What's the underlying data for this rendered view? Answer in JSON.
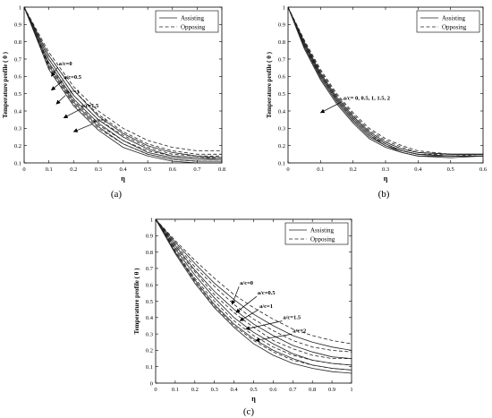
{
  "figure": {
    "panels": [
      {
        "caption": "(a)",
        "xlabel": "η",
        "ylabel": "Temperature profile ( θ )"
      },
      {
        "caption": "(b)",
        "xlabel": "η",
        "ylabel": "Temperature profile ( θ )"
      },
      {
        "caption": "(c)",
        "xlabel": "η",
        "ylabel": "Temperature profile ( θ )"
      }
    ]
  },
  "chart_data": [
    {
      "type": "line",
      "caption": "(a)",
      "xlabel": "η",
      "ylabel": "Temperature profile ( θ )",
      "xlim": [
        0,
        0.8
      ],
      "ylim": [
        0.1,
        1
      ],
      "xticks": [
        "0",
        "0.1",
        "0.2",
        "0.3",
        "0.4",
        "0.5",
        "0.6",
        "0.7",
        "0.8"
      ],
      "yticks": [
        "0.1",
        "0.2",
        "0.3",
        "0.4",
        "0.5",
        "0.6",
        "0.7",
        "0.8",
        "0.9",
        "1"
      ],
      "legend": {
        "position": "top-right",
        "entries": [
          {
            "label": "Assisting",
            "style": "solid"
          },
          {
            "label": "Opposing",
            "style": "dashed"
          }
        ]
      },
      "grid": false,
      "series": [
        {
          "name": "a/c=0",
          "style": "solid",
          "x": [
            0,
            0.1,
            0.2,
            0.3,
            0.4,
            0.5,
            0.6,
            0.7,
            0.8
          ],
          "y": [
            1,
            0.72,
            0.52,
            0.37,
            0.27,
            0.2,
            0.16,
            0.14,
            0.13
          ]
        },
        {
          "name": "a/c=0",
          "style": "dashed",
          "x": [
            0,
            0.1,
            0.2,
            0.3,
            0.4,
            0.5,
            0.6,
            0.7,
            0.8
          ],
          "y": [
            1,
            0.74,
            0.54,
            0.4,
            0.3,
            0.23,
            0.19,
            0.17,
            0.17
          ]
        },
        {
          "name": "a/c=0.5",
          "style": "solid",
          "x": [
            0,
            0.1,
            0.2,
            0.3,
            0.4,
            0.5,
            0.6,
            0.7,
            0.8
          ],
          "y": [
            1,
            0.7,
            0.49,
            0.35,
            0.25,
            0.18,
            0.14,
            0.13,
            0.12
          ]
        },
        {
          "name": "a/c=0.5",
          "style": "dashed",
          "x": [
            0,
            0.1,
            0.2,
            0.3,
            0.4,
            0.5,
            0.6,
            0.7,
            0.8
          ],
          "y": [
            1,
            0.72,
            0.52,
            0.38,
            0.28,
            0.21,
            0.17,
            0.15,
            0.15
          ]
        },
        {
          "name": "a/c=1",
          "style": "solid",
          "x": [
            0,
            0.1,
            0.2,
            0.3,
            0.4,
            0.5,
            0.6,
            0.7,
            0.8
          ],
          "y": [
            1,
            0.68,
            0.47,
            0.33,
            0.23,
            0.16,
            0.13,
            0.12,
            0.12
          ]
        },
        {
          "name": "a/c=1",
          "style": "dashed",
          "x": [
            0,
            0.1,
            0.2,
            0.3,
            0.4,
            0.5,
            0.6,
            0.7,
            0.8
          ],
          "y": [
            1,
            0.7,
            0.49,
            0.35,
            0.26,
            0.19,
            0.15,
            0.14,
            0.14
          ]
        },
        {
          "name": "a/c=1.5",
          "style": "solid",
          "x": [
            0,
            0.1,
            0.2,
            0.3,
            0.4,
            0.5,
            0.6,
            0.7,
            0.8
          ],
          "y": [
            1,
            0.66,
            0.45,
            0.31,
            0.21,
            0.15,
            0.12,
            0.11,
            0.11
          ]
        },
        {
          "name": "a/c=1.5",
          "style": "dashed",
          "x": [
            0,
            0.1,
            0.2,
            0.3,
            0.4,
            0.5,
            0.6,
            0.7,
            0.8
          ],
          "y": [
            1,
            0.67,
            0.46,
            0.32,
            0.23,
            0.17,
            0.14,
            0.13,
            0.13
          ]
        },
        {
          "name": "a/c=2",
          "style": "solid",
          "x": [
            0,
            0.1,
            0.2,
            0.3,
            0.4,
            0.5,
            0.6,
            0.7,
            0.8
          ],
          "y": [
            1,
            0.64,
            0.43,
            0.29,
            0.19,
            0.14,
            0.11,
            0.1,
            0.1
          ]
        },
        {
          "name": "a/c=2",
          "style": "dashed",
          "x": [
            0,
            0.1,
            0.2,
            0.3,
            0.4,
            0.5,
            0.6,
            0.7,
            0.8
          ],
          "y": [
            1,
            0.65,
            0.44,
            0.3,
            0.21,
            0.15,
            0.12,
            0.11,
            0.11
          ]
        }
      ],
      "annotations": [
        {
          "text": "a/c=0",
          "x": 0.14,
          "y": 0.665
        },
        {
          "text": "a/c=0.5",
          "x": 0.16,
          "y": 0.585
        },
        {
          "text": "a/c=1",
          "x": 0.17,
          "y": 0.5
        },
        {
          "text": "a/c=1.5",
          "x": 0.23,
          "y": 0.42
        },
        {
          "text": "a/c=2",
          "x": 0.28,
          "y": 0.335
        }
      ]
    },
    {
      "type": "line",
      "caption": "(b)",
      "xlabel": "η",
      "ylabel": "Temperature profile ( θ )",
      "xlim": [
        0,
        0.6
      ],
      "ylim": [
        0.1,
        1
      ],
      "xticks": [
        "0",
        "0.1",
        "0.2",
        "0.3",
        "0.4",
        "0.5",
        "0.6"
      ],
      "yticks": [
        "0.1",
        "0.2",
        "0.3",
        "0.4",
        "0.5",
        "0.6",
        "0.7",
        "0.8",
        "0.9",
        "1"
      ],
      "legend": {
        "position": "top-right",
        "entries": [
          {
            "label": "Assisting",
            "style": "solid"
          },
          {
            "label": "Opposing",
            "style": "dashed"
          }
        ]
      },
      "grid": false,
      "series": [
        {
          "name": "a/c=0",
          "style": "solid",
          "x": [
            0,
            0.05,
            0.1,
            0.15,
            0.2,
            0.25,
            0.3,
            0.35,
            0.4,
            0.5,
            0.6
          ],
          "y": [
            1,
            0.8,
            0.62,
            0.48,
            0.37,
            0.28,
            0.22,
            0.18,
            0.16,
            0.15,
            0.15
          ]
        },
        {
          "name": "a/c=0",
          "style": "dashed",
          "x": [
            0,
            0.05,
            0.1,
            0.15,
            0.2,
            0.25,
            0.3,
            0.35,
            0.4,
            0.5,
            0.6
          ],
          "y": [
            1,
            0.81,
            0.64,
            0.5,
            0.39,
            0.3,
            0.24,
            0.2,
            0.17,
            0.15,
            0.15
          ]
        },
        {
          "name": "a/c=0.5",
          "style": "solid",
          "x": [
            0,
            0.05,
            0.1,
            0.15,
            0.2,
            0.25,
            0.3,
            0.35,
            0.4,
            0.5,
            0.6
          ],
          "y": [
            1,
            0.79,
            0.61,
            0.47,
            0.36,
            0.27,
            0.21,
            0.17,
            0.15,
            0.14,
            0.14
          ]
        },
        {
          "name": "a/c=0.5",
          "style": "dashed",
          "x": [
            0,
            0.05,
            0.1,
            0.15,
            0.2,
            0.25,
            0.3,
            0.35,
            0.4,
            0.5,
            0.6
          ],
          "y": [
            1,
            0.8,
            0.63,
            0.49,
            0.38,
            0.29,
            0.23,
            0.19,
            0.16,
            0.15,
            0.15
          ]
        },
        {
          "name": "a/c=1",
          "style": "solid",
          "x": [
            0,
            0.05,
            0.1,
            0.15,
            0.2,
            0.25,
            0.3,
            0.35,
            0.4,
            0.5,
            0.6
          ],
          "y": [
            1,
            0.78,
            0.6,
            0.46,
            0.35,
            0.26,
            0.2,
            0.17,
            0.15,
            0.14,
            0.14
          ]
        },
        {
          "name": "a/c=1",
          "style": "dashed",
          "x": [
            0,
            0.05,
            0.1,
            0.15,
            0.2,
            0.25,
            0.3,
            0.35,
            0.4,
            0.5,
            0.6
          ],
          "y": [
            1,
            0.79,
            0.62,
            0.48,
            0.37,
            0.28,
            0.22,
            0.18,
            0.16,
            0.15,
            0.15
          ]
        },
        {
          "name": "a/c=1.5",
          "style": "solid",
          "x": [
            0,
            0.05,
            0.1,
            0.15,
            0.2,
            0.25,
            0.3,
            0.35,
            0.4,
            0.5,
            0.6
          ],
          "y": [
            1,
            0.77,
            0.59,
            0.45,
            0.34,
            0.25,
            0.2,
            0.16,
            0.14,
            0.14,
            0.14
          ]
        },
        {
          "name": "a/c=1.5",
          "style": "dashed",
          "x": [
            0,
            0.05,
            0.1,
            0.15,
            0.2,
            0.25,
            0.3,
            0.35,
            0.4,
            0.5,
            0.6
          ],
          "y": [
            1,
            0.78,
            0.61,
            0.47,
            0.36,
            0.27,
            0.21,
            0.17,
            0.15,
            0.15,
            0.15
          ]
        },
        {
          "name": "a/c=2",
          "style": "solid",
          "x": [
            0,
            0.05,
            0.1,
            0.15,
            0.2,
            0.25,
            0.3,
            0.35,
            0.4,
            0.5,
            0.6
          ],
          "y": [
            1,
            0.76,
            0.58,
            0.44,
            0.33,
            0.24,
            0.19,
            0.16,
            0.14,
            0.13,
            0.14
          ]
        },
        {
          "name": "a/c=2",
          "style": "dashed",
          "x": [
            0,
            0.05,
            0.1,
            0.15,
            0.2,
            0.25,
            0.3,
            0.35,
            0.4,
            0.5,
            0.6
          ],
          "y": [
            1,
            0.77,
            0.6,
            0.46,
            0.35,
            0.26,
            0.21,
            0.17,
            0.15,
            0.14,
            0.15
          ]
        }
      ],
      "annotations": [
        {
          "text": "a/c= 0, 0.5, 1, 1.5, 2",
          "x": 0.17,
          "y": 0.465
        }
      ]
    },
    {
      "type": "line",
      "caption": "(c)",
      "xlabel": "η",
      "ylabel": "Temperature profile ( θ )",
      "xlim": [
        0,
        1
      ],
      "ylim": [
        0,
        1
      ],
      "xticks": [
        "0",
        "0.1",
        "0.2",
        "0.3",
        "0.4",
        "0.5",
        "0.6",
        "0.7",
        "0.8",
        "0.9",
        "1"
      ],
      "yticks": [
        "0",
        "0.1",
        "0.2",
        "0.3",
        "0.4",
        "0.5",
        "0.6",
        "0.7",
        "0.8",
        "0.9",
        "1"
      ],
      "legend": {
        "position": "top-right",
        "entries": [
          {
            "label": "Assisting",
            "style": "solid"
          },
          {
            "label": "Opposing",
            "style": "dashed"
          }
        ]
      },
      "grid": false,
      "series": [
        {
          "name": "a/c=0",
          "style": "solid",
          "x": [
            0,
            0.1,
            0.2,
            0.3,
            0.4,
            0.5,
            0.6,
            0.7,
            0.8,
            0.9,
            1
          ],
          "y": [
            1,
            0.86,
            0.73,
            0.61,
            0.51,
            0.42,
            0.35,
            0.29,
            0.25,
            0.22,
            0.2
          ]
        },
        {
          "name": "a/c=0",
          "style": "dashed",
          "x": [
            0,
            0.1,
            0.2,
            0.3,
            0.4,
            0.5,
            0.6,
            0.7,
            0.8,
            0.9,
            1
          ],
          "y": [
            1,
            0.87,
            0.75,
            0.64,
            0.54,
            0.46,
            0.39,
            0.33,
            0.29,
            0.26,
            0.24
          ]
        },
        {
          "name": "a/c=0.5",
          "style": "solid",
          "x": [
            0,
            0.1,
            0.2,
            0.3,
            0.4,
            0.5,
            0.6,
            0.7,
            0.8,
            0.9,
            1
          ],
          "y": [
            1,
            0.84,
            0.69,
            0.56,
            0.45,
            0.36,
            0.29,
            0.23,
            0.19,
            0.16,
            0.15
          ]
        },
        {
          "name": "a/c=0.5",
          "style": "dashed",
          "x": [
            0,
            0.1,
            0.2,
            0.3,
            0.4,
            0.5,
            0.6,
            0.7,
            0.8,
            0.9,
            1
          ],
          "y": [
            1,
            0.85,
            0.71,
            0.59,
            0.48,
            0.39,
            0.32,
            0.26,
            0.22,
            0.2,
            0.19
          ]
        },
        {
          "name": "a/c=1",
          "style": "solid",
          "x": [
            0,
            0.1,
            0.2,
            0.3,
            0.4,
            0.5,
            0.6,
            0.7,
            0.8,
            0.9,
            1
          ],
          "y": [
            1,
            0.82,
            0.66,
            0.52,
            0.4,
            0.31,
            0.24,
            0.18,
            0.14,
            0.12,
            0.11
          ]
        },
        {
          "name": "a/c=1",
          "style": "dashed",
          "x": [
            0,
            0.1,
            0.2,
            0.3,
            0.4,
            0.5,
            0.6,
            0.7,
            0.8,
            0.9,
            1
          ],
          "y": [
            1,
            0.83,
            0.68,
            0.54,
            0.43,
            0.34,
            0.26,
            0.21,
            0.17,
            0.15,
            0.15
          ]
        },
        {
          "name": "a/c=1.5",
          "style": "solid",
          "x": [
            0,
            0.1,
            0.2,
            0.3,
            0.4,
            0.5,
            0.6,
            0.7,
            0.8,
            0.9,
            1
          ],
          "y": [
            1,
            0.8,
            0.63,
            0.48,
            0.36,
            0.27,
            0.2,
            0.15,
            0.11,
            0.09,
            0.08
          ]
        },
        {
          "name": "a/c=1.5",
          "style": "dashed",
          "x": [
            0,
            0.1,
            0.2,
            0.3,
            0.4,
            0.5,
            0.6,
            0.7,
            0.8,
            0.9,
            1
          ],
          "y": [
            1,
            0.81,
            0.64,
            0.5,
            0.38,
            0.29,
            0.22,
            0.17,
            0.14,
            0.12,
            0.11
          ]
        },
        {
          "name": "a/c=2",
          "style": "solid",
          "x": [
            0,
            0.1,
            0.2,
            0.3,
            0.4,
            0.5,
            0.6,
            0.7,
            0.8,
            0.9,
            1
          ],
          "y": [
            1,
            0.79,
            0.61,
            0.46,
            0.34,
            0.24,
            0.17,
            0.12,
            0.09,
            0.07,
            0.06
          ]
        },
        {
          "name": "a/c=2",
          "style": "dashed",
          "x": [
            0,
            0.1,
            0.2,
            0.3,
            0.4,
            0.5,
            0.6,
            0.7,
            0.8,
            0.9,
            1
          ],
          "y": [
            1,
            0.8,
            0.62,
            0.47,
            0.35,
            0.26,
            0.19,
            0.14,
            0.11,
            0.09,
            0.08
          ]
        }
      ],
      "annotations": [
        {
          "text": "a/c=0",
          "x": 0.43,
          "y": 0.6
        },
        {
          "text": "a/c=0.5",
          "x": 0.52,
          "y": 0.54
        },
        {
          "text": "a/c=1",
          "x": 0.53,
          "y": 0.46
        },
        {
          "text": "a/c=1.5",
          "x": 0.65,
          "y": 0.39
        },
        {
          "text": "a/c=2",
          "x": 0.7,
          "y": 0.31
        }
      ]
    }
  ]
}
